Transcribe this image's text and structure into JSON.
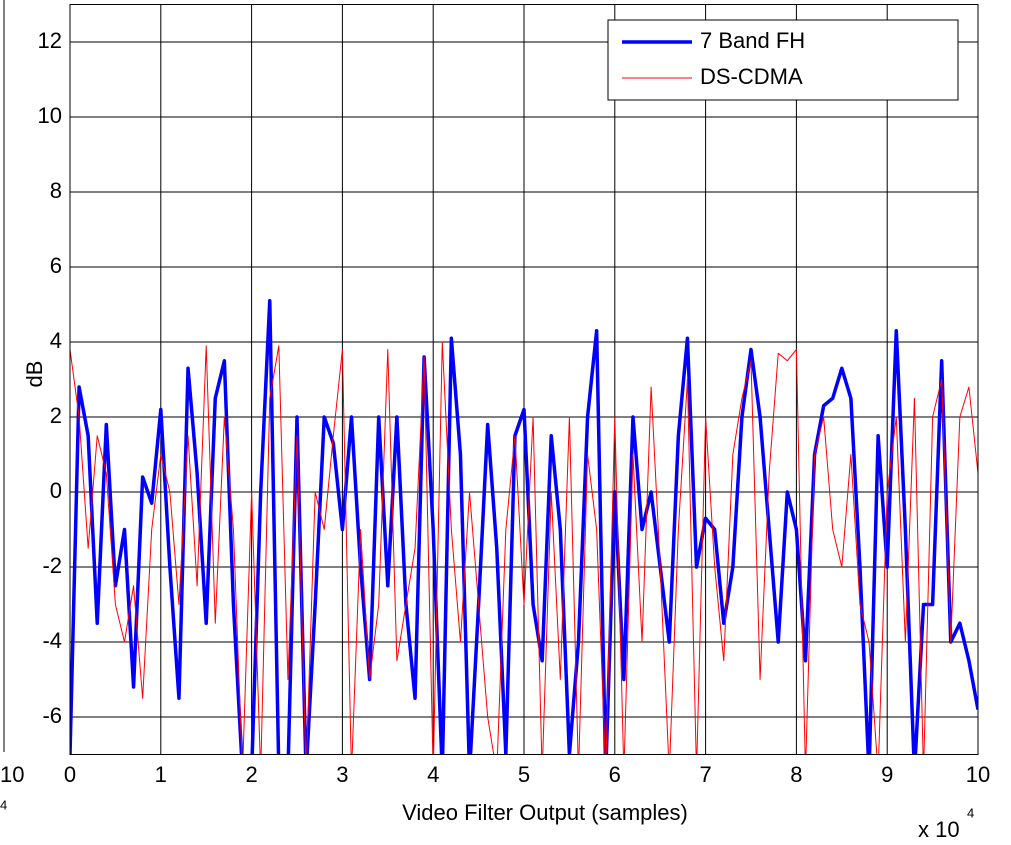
{
  "chart_data": {
    "type": "line",
    "xlabel": "Video Filter Output (samples)",
    "ylabel": "dB",
    "x_multiplier": {
      "base": "x 10",
      "exponent": "4"
    },
    "left_fragment": {
      "tick": "10",
      "exponent": "4"
    },
    "x": [
      0,
      0.1,
      0.2,
      0.3,
      0.4,
      0.5,
      0.6,
      0.7,
      0.8,
      0.9,
      1,
      1.1,
      1.2,
      1.3,
      1.4,
      1.5,
      1.6,
      1.7,
      1.8,
      1.9,
      2,
      2.1,
      2.2,
      2.3,
      2.4,
      2.5,
      2.6,
      2.7,
      2.8,
      2.9,
      3,
      3.1,
      3.2,
      3.3,
      3.4,
      3.5,
      3.6,
      3.7,
      3.8,
      3.9,
      4,
      4.1,
      4.2,
      4.3,
      4.4,
      4.5,
      4.6,
      4.7,
      4.8,
      4.9,
      5,
      5.1,
      5.2,
      5.3,
      5.4,
      5.5,
      5.6,
      5.7,
      5.8,
      5.9,
      6,
      6.1,
      6.2,
      6.3,
      6.4,
      6.5,
      6.6,
      6.7,
      6.8,
      6.9,
      7,
      7.1,
      7.2,
      7.3,
      7.4,
      7.5,
      7.6,
      7.7,
      7.8,
      7.9,
      8,
      8.1,
      8.2,
      8.3,
      8.4,
      8.5,
      8.6,
      8.7,
      8.8,
      8.9,
      9,
      9.1,
      9.2,
      9.3,
      9.4,
      9.5,
      9.6,
      9.7,
      9.8,
      9.9,
      10
    ],
    "series": [
      {
        "name": "7 Band FH",
        "color": "#0000ff",
        "width": 3.5,
        "values": [
          -7,
          2.8,
          1.5,
          -3.5,
          1.8,
          -2.5,
          -1,
          -5.2,
          0.4,
          -0.3,
          2.2,
          -2,
          -5.5,
          3.3,
          0.5,
          -3.5,
          2.5,
          3.5,
          -3,
          -7.5,
          -7.5,
          0,
          5.1,
          -7.5,
          -7.5,
          2,
          -7.5,
          -3,
          2,
          1.3,
          -1,
          2,
          -2,
          -5,
          2,
          -2.5,
          2,
          -3,
          -5.5,
          3.6,
          -1,
          -7.5,
          4.1,
          1,
          -7.5,
          -3,
          1.8,
          -1.5,
          -7,
          1.5,
          2.2,
          -3,
          -4.5,
          1.5,
          -1,
          -7,
          -4,
          2,
          4.3,
          -7.5,
          0,
          -5,
          2,
          -1,
          0,
          -2,
          -4,
          1.5,
          4.1,
          -2,
          -0.7,
          -1,
          -3.5,
          -2,
          2,
          3.8,
          2,
          -1,
          -4,
          0,
          -1,
          -4.5,
          1,
          2.3,
          2.5,
          3.3,
          2.5,
          -2,
          -7.5,
          1.5,
          -2,
          4.3,
          -1,
          -7.5,
          -3,
          -3,
          3.5,
          -4,
          -3.5,
          -4.5,
          -5.8
        ]
      },
      {
        "name": "DS-CDMA",
        "color": "#ff0000",
        "width": 1,
        "values": [
          3.8,
          2,
          -1.5,
          1.5,
          0.5,
          -3,
          -4,
          -2.5,
          -5.5,
          -1,
          1,
          0,
          -3,
          1.5,
          -2.5,
          3.9,
          -3.5,
          2,
          -1,
          -7.5,
          0,
          -7.5,
          2.5,
          3.9,
          -5,
          1.5,
          -7.5,
          0,
          -1,
          1.5,
          3.8,
          -7.5,
          -1,
          -5,
          -3,
          3.8,
          -4.5,
          -3,
          -1.5,
          3.6,
          -7.5,
          4,
          -1,
          -4,
          0,
          -3,
          -6,
          -7.5,
          -1,
          1.5,
          -3,
          2,
          -7.5,
          0,
          -5,
          2,
          -7.5,
          1,
          -1,
          -7.5,
          2,
          -7.5,
          1,
          -4,
          2.8,
          -2,
          -7.5,
          -1,
          3,
          -7.5,
          2,
          -2,
          -4.5,
          1,
          2.5,
          3.5,
          -5,
          0.5,
          3.7,
          3.5,
          3.8,
          -7.5,
          1,
          2,
          -1,
          -2,
          1,
          -3,
          -4,
          -7.5,
          0,
          2,
          -4,
          2.5,
          -7.5,
          2,
          3,
          -4,
          2,
          2.8,
          0.5
        ]
      }
    ],
    "xlim": [
      0,
      10
    ],
    "ylim": [
      -7,
      13
    ],
    "xticks": [
      0,
      1,
      2,
      3,
      4,
      5,
      6,
      7,
      8,
      9,
      10
    ],
    "yticks": [
      -6,
      -4,
      -2,
      0,
      2,
      4,
      6,
      8,
      10,
      12
    ],
    "grid": true,
    "legend": "upper right"
  }
}
